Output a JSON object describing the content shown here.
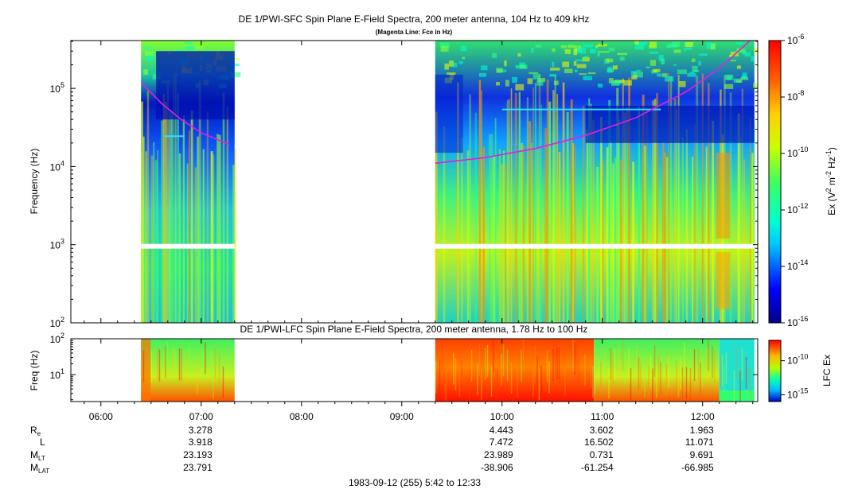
{
  "chart_data": [
    {
      "type": "heatmap",
      "title": "DE 1/PWI-SFC  Spin Plane E-Field Spectra, 200 meter antenna, 104 Hz to 409 kHz",
      "subtitle": "(Magenta Line: Fce in Hz)",
      "ylabel": "Frequency (Hz)",
      "yscale": "log",
      "ylim": [
        100,
        409000
      ],
      "yticks": [
        {
          "value": 100,
          "base": "10",
          "exp": "2"
        },
        {
          "value": 1000,
          "base": "10",
          "exp": "3"
        },
        {
          "value": 10000,
          "base": "10",
          "exp": "4"
        },
        {
          "value": 100000,
          "base": "10",
          "exp": "5"
        }
      ],
      "colorbar": {
        "label_parts": [
          {
            "t": "Ex (V",
            "s": "n"
          },
          {
            "t": "2",
            "s": "sup"
          },
          {
            "t": " m",
            "s": "n"
          },
          {
            "t": "-2",
            "s": "sup"
          },
          {
            "t": " Hz",
            "s": "n"
          },
          {
            "t": "-1",
            "s": "sup"
          },
          {
            "t": ")",
            "s": "n"
          }
        ],
        "scale": "log",
        "range": [
          1e-16,
          1e-06
        ],
        "ticks": [
          {
            "value": 1e-16,
            "base": "10",
            "exp": "-16"
          },
          {
            "value": 1e-14,
            "base": "10",
            "exp": "-14"
          },
          {
            "value": 1e-12,
            "base": "10",
            "exp": "-12"
          },
          {
            "value": 1e-10,
            "base": "10",
            "exp": "-10"
          },
          {
            "value": 1e-08,
            "base": "10",
            "exp": "-8"
          },
          {
            "value": 1e-06,
            "base": "10",
            "exp": "-6"
          }
        ]
      },
      "data_coverage_utc": [
        [
          "06:24",
          "07:20"
        ],
        [
          "09:20",
          "12:31"
        ]
      ],
      "fce_line": {
        "color": "#e020e0",
        "segments": [
          [
            [
              "06:24",
              120000
            ],
            [
              "06:36",
              65000
            ],
            [
              "06:48",
              40000
            ],
            [
              "07:00",
              27000
            ],
            [
              "07:17",
              19000
            ]
          ],
          [
            [
              "09:20",
              11000
            ],
            [
              "09:50",
              13000
            ],
            [
              "10:20",
              17000
            ],
            [
              "10:50",
              25000
            ],
            [
              "11:20",
              42000
            ],
            [
              "11:50",
              90000
            ],
            [
              "12:10",
              180000
            ],
            [
              "12:28",
              400000
            ]
          ]
        ]
      }
    },
    {
      "type": "heatmap",
      "title": "DE 1/PWI-LFC  Spin Plane E-Field Spectra, 200 meter antenna, 1.78 Hz to 100 Hz",
      "ylabel": "Freq (Hz)",
      "yscale": "log",
      "ylim": [
        1.78,
        100
      ],
      "yticks": [
        {
          "value": 10,
          "base": "10",
          "exp": "1"
        },
        {
          "value": 100,
          "base": "10",
          "exp": "2"
        }
      ],
      "colorbar": {
        "label": "LFC Ex",
        "scale": "log",
        "range": [
          1e-16,
          1e-07
        ],
        "ticks": [
          {
            "value": 1e-15,
            "base": "10",
            "exp": "-15"
          },
          {
            "value": 1e-10,
            "base": "10",
            "exp": "-10"
          }
        ]
      },
      "data_coverage_utc": [
        [
          "06:24",
          "07:20"
        ],
        [
          "09:20",
          "12:31"
        ]
      ]
    }
  ],
  "time_axis": {
    "start": "05:42",
    "end": "12:33",
    "ticks": [
      "06:00",
      "07:00",
      "08:00",
      "09:00",
      "10:00",
      "11:00",
      "12:00"
    ]
  },
  "ephemeris": {
    "rows": [
      {
        "name": "R",
        "sub": "e",
        "values": [
          "3.278",
          "",
          "",
          "4.443",
          "3.602",
          "1.963"
        ]
      },
      {
        "name": "L",
        "sub": "",
        "values": [
          "3.918",
          "",
          "",
          "7.472",
          "16.502",
          "11.071"
        ]
      },
      {
        "name": "M",
        "sub": "LT",
        "values": [
          "23.193",
          "",
          "",
          "23.989",
          "0.731",
          "9.691"
        ]
      },
      {
        "name": "M",
        "sub": "LAT",
        "values": [
          "23.791",
          "",
          "",
          "-38.906",
          "-61.254",
          "-66.985"
        ]
      }
    ],
    "columns": [
      "07:00",
      "08:00",
      "09:00",
      "10:00",
      "11:00",
      "12:00"
    ]
  },
  "footer": "1983-09-12 (255) 5:42 to 12:33"
}
